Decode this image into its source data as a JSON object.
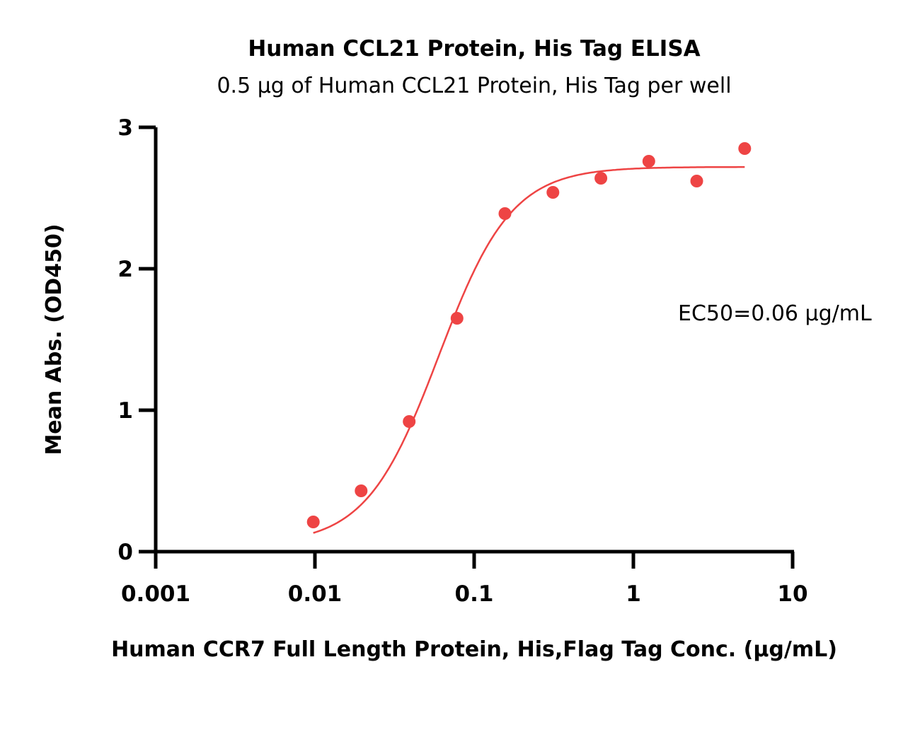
{
  "chart_data": {
    "type": "scatter",
    "title": "Human CCL21 Protein, His Tag ELISA",
    "subtitle": "0.5 μg of Human CCL21 Protein, His Tag per well",
    "xlabel": "Human CCR7 Full Length Protein, His,Flag Tag Conc. (μg/mL)",
    "ylabel": "Mean Abs. (OD450)",
    "x_scale": "log",
    "xlim": [
      0.001,
      10
    ],
    "ylim": [
      0,
      3
    ],
    "x_ticks": [
      {
        "value": 0.001,
        "label": "0.001"
      },
      {
        "value": 0.01,
        "label": "0.01"
      },
      {
        "value": 0.1,
        "label": "0.1"
      },
      {
        "value": 1,
        "label": "1"
      },
      {
        "value": 10,
        "label": "10"
      }
    ],
    "y_ticks": [
      {
        "value": 0,
        "label": "0"
      },
      {
        "value": 1,
        "label": "1"
      },
      {
        "value": 2,
        "label": "2"
      },
      {
        "value": 3,
        "label": "3"
      }
    ],
    "grid": false,
    "color": "#ee4444",
    "series": [
      {
        "x": [
          0.00977,
          0.0195,
          0.0391,
          0.0781,
          0.156,
          0.3125,
          0.625,
          1.25,
          2.5,
          5
        ],
        "y": [
          0.21,
          0.43,
          0.92,
          1.65,
          2.39,
          2.54,
          2.64,
          2.76,
          2.62,
          2.85
        ]
      }
    ],
    "fit": {
      "model": "4PL",
      "bottom": 0.05,
      "top": 2.72,
      "ec50": 0.06,
      "hill": 1.9,
      "x_range": [
        0.00977,
        5
      ]
    },
    "annotation": "EC50=0.06 μg/mL"
  }
}
